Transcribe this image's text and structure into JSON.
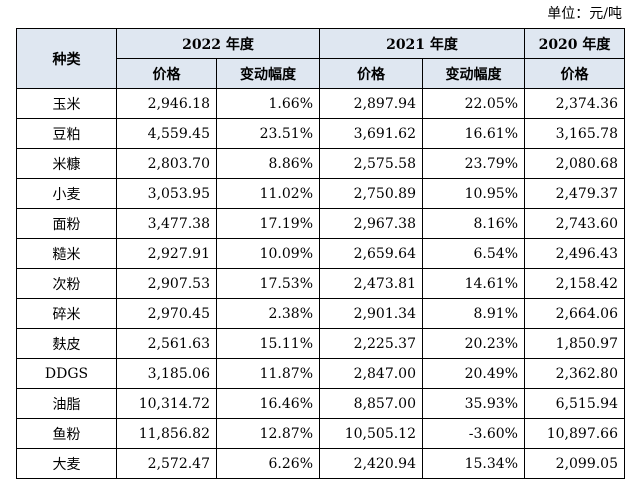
{
  "unit_label": "单位：元/吨",
  "header": {
    "kind": "种类",
    "years": [
      "2022 年度",
      "2021 年度",
      "2020 年度"
    ],
    "price": "价格",
    "change": "变动幅度"
  },
  "rows": [
    [
      "玉米",
      "2,946.18",
      "1.66%",
      "2,897.94",
      "22.05%",
      "2,374.36"
    ],
    [
      "豆粕",
      "4,559.45",
      "23.51%",
      "3,691.62",
      "16.61%",
      "3,165.78"
    ],
    [
      "米糠",
      "2,803.70",
      "8.86%",
      "2,575.58",
      "23.79%",
      "2,080.68"
    ],
    [
      "小麦",
      "3,053.95",
      "11.02%",
      "2,750.89",
      "10.95%",
      "2,479.37"
    ],
    [
      "面粉",
      "3,477.38",
      "17.19%",
      "2,967.38",
      "8.16%",
      "2,743.60"
    ],
    [
      "糙米",
      "2,927.91",
      "10.09%",
      "2,659.64",
      "6.54%",
      "2,496.43"
    ],
    [
      "次粉",
      "2,907.53",
      "17.53%",
      "2,473.81",
      "14.61%",
      "2,158.42"
    ],
    [
      "碎米",
      "2,970.45",
      "2.38%",
      "2,901.34",
      "8.91%",
      "2,664.06"
    ],
    [
      "麸皮",
      "2,561.63",
      "15.11%",
      "2,225.37",
      "20.23%",
      "1,850.97"
    ],
    [
      "DDGS",
      "3,185.06",
      "11.87%",
      "2,847.00",
      "20.49%",
      "2,362.80"
    ],
    [
      "油脂",
      "10,314.72",
      "16.46%",
      "8,857.00",
      "35.93%",
      "6,515.94"
    ],
    [
      "鱼粉",
      "11,856.82",
      "12.87%",
      "10,505.12",
      "-3.60%",
      "10,897.66"
    ],
    [
      "大麦",
      "2,572.47",
      "6.26%",
      "2,420.94",
      "15.34%",
      "2,099.05"
    ]
  ]
}
